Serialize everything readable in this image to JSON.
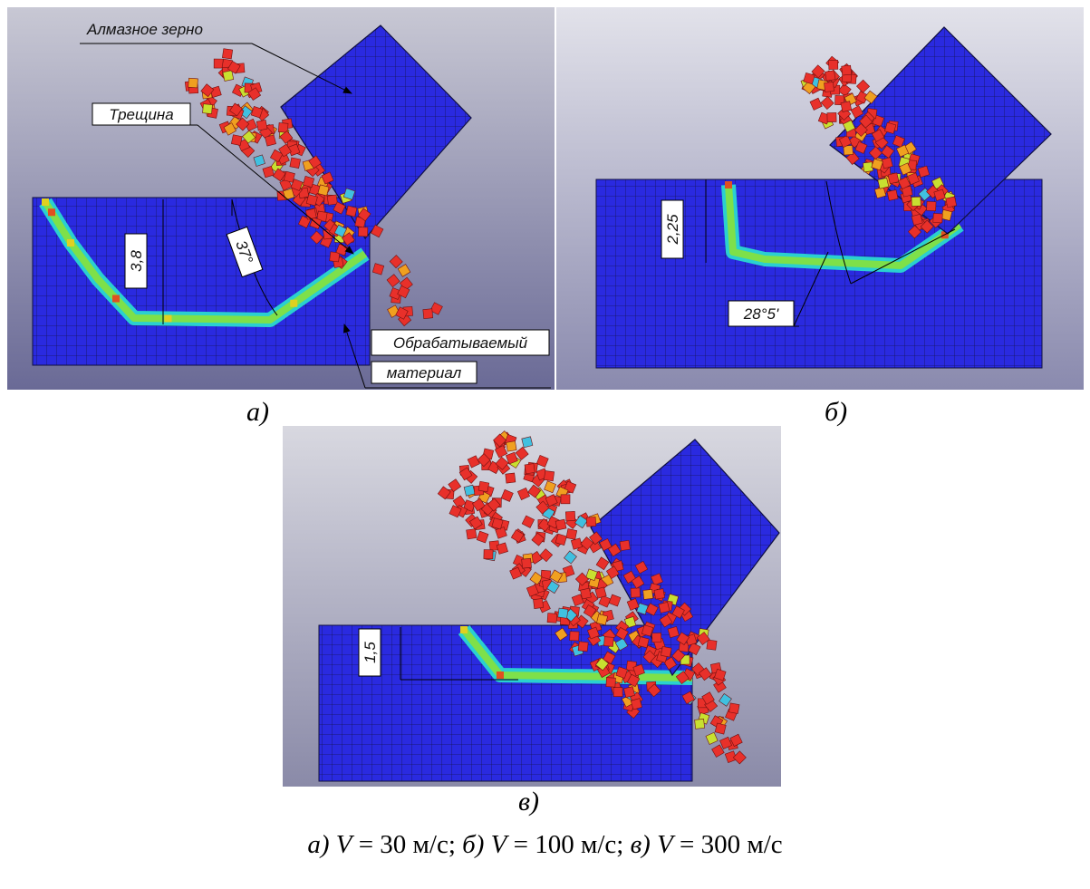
{
  "panels": [
    {
      "label": "а)",
      "annotations": {
        "grain": "Алмазное зерно",
        "crack": "Трещина",
        "depth": "3,8",
        "angle": "37°",
        "material": [
          "Обрабатываемый",
          "материал"
        ]
      }
    },
    {
      "label": "б)",
      "annotations": {
        "depth": "2,25",
        "angle": "28°5'"
      }
    },
    {
      "label": "в)",
      "annotations": {
        "depth": "1,5"
      }
    }
  ],
  "caption": [
    {
      "label": "а)",
      "var": "V",
      "rest": "= 30 м/с;"
    },
    {
      "label": "б)",
      "var": "V",
      "rest": "= 100 м/с;"
    },
    {
      "label": "в)",
      "var": "V",
      "rest": "= 300 м/с"
    }
  ]
}
